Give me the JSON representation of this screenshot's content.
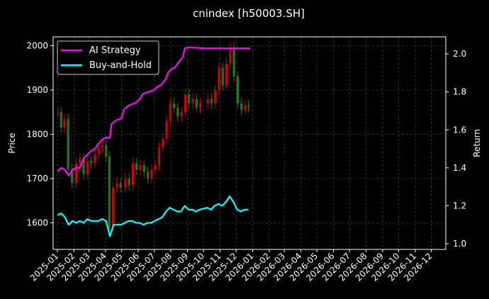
{
  "chart_data": {
    "type": "line",
    "title": "cnindex [h50003.SH]",
    "ylabel_left": "Price",
    "ylabel_right": "Return",
    "x_tick_labels": [
      "2025-01",
      "2025-02",
      "2025-03",
      "2025-04",
      "2025-05",
      "2025-06",
      "2025-07",
      "2025-08",
      "2025-09",
      "2025-10",
      "2025-11",
      "2025-12",
      "2026-01",
      "2026-02",
      "2026-03",
      "2026-04",
      "2026-05",
      "2026-06",
      "2026-07",
      "2026-08",
      "2026-09",
      "2026-10",
      "2026-11",
      "2026-12"
    ],
    "xlim": [
      "2024-12-24",
      "2026-12-28"
    ],
    "ylim_left": [
      1540,
      2020
    ],
    "yticks_left": [
      1600,
      1700,
      1800,
      1900,
      2000
    ],
    "ylim_right": [
      0.97,
      2.09
    ],
    "yticks_right": [
      "1.0",
      "1.2",
      "1.4",
      "1.6",
      "1.8",
      "2.0"
    ],
    "grid": true,
    "legend_position": "top-left",
    "colors": {
      "up": "#cc0000",
      "down": "#1f7a1f",
      "ai": "#ff00ff",
      "bh": "#00ffff",
      "background": "#000000"
    },
    "price_series": [
      {
        "date": "2025-01-02",
        "close": 1850
      },
      {
        "date": "2025-01-08",
        "close": 1815
      },
      {
        "date": "2025-01-14",
        "close": 1835
      },
      {
        "date": "2025-01-21",
        "close": 1720
      },
      {
        "date": "2025-01-28",
        "close": 1690
      },
      {
        "date": "2025-02-05",
        "close": 1735
      },
      {
        "date": "2025-02-12",
        "close": 1745
      },
      {
        "date": "2025-02-19",
        "close": 1710
      },
      {
        "date": "2025-02-26",
        "close": 1740
      },
      {
        "date": "2025-03-05",
        "close": 1735
      },
      {
        "date": "2025-03-12",
        "close": 1755
      },
      {
        "date": "2025-03-19",
        "close": 1770
      },
      {
        "date": "2025-03-26",
        "close": 1775
      },
      {
        "date": "2025-04-02",
        "close": 1750
      },
      {
        "date": "2025-04-08",
        "close": 1590
      },
      {
        "date": "2025-04-15",
        "close": 1680
      },
      {
        "date": "2025-04-22",
        "close": 1690
      },
      {
        "date": "2025-04-29",
        "close": 1680
      },
      {
        "date": "2025-05-08",
        "close": 1700
      },
      {
        "date": "2025-05-15",
        "close": 1685
      },
      {
        "date": "2025-05-22",
        "close": 1735
      },
      {
        "date": "2025-05-29",
        "close": 1720
      },
      {
        "date": "2025-06-05",
        "close": 1730
      },
      {
        "date": "2025-06-12",
        "close": 1715
      },
      {
        "date": "2025-06-19",
        "close": 1700
      },
      {
        "date": "2025-06-26",
        "close": 1720
      },
      {
        "date": "2025-07-03",
        "close": 1730
      },
      {
        "date": "2025-07-10",
        "close": 1770
      },
      {
        "date": "2025-07-17",
        "close": 1790
      },
      {
        "date": "2025-07-24",
        "close": 1830
      },
      {
        "date": "2025-07-31",
        "close": 1870
      },
      {
        "date": "2025-08-07",
        "close": 1860
      },
      {
        "date": "2025-08-14",
        "close": 1840
      },
      {
        "date": "2025-08-21",
        "close": 1850
      },
      {
        "date": "2025-08-28",
        "close": 1890
      },
      {
        "date": "2025-09-04",
        "close": 1870
      },
      {
        "date": "2025-09-11",
        "close": 1880
      },
      {
        "date": "2025-09-18",
        "close": 1860
      },
      {
        "date": "2025-09-25",
        "close": 1870
      },
      {
        "date": "2025-10-09",
        "close": 1880
      },
      {
        "date": "2025-10-16",
        "close": 1870
      },
      {
        "date": "2025-10-23",
        "close": 1900
      },
      {
        "date": "2025-10-30",
        "close": 1950
      },
      {
        "date": "2025-11-06",
        "close": 1910
      },
      {
        "date": "2025-11-13",
        "close": 1960
      },
      {
        "date": "2025-11-20",
        "close": 1995
      },
      {
        "date": "2025-11-27",
        "close": 1930
      },
      {
        "date": "2025-12-04",
        "close": 1870
      },
      {
        "date": "2025-12-11",
        "close": 1855
      },
      {
        "date": "2025-12-18",
        "close": 1865
      },
      {
        "date": "2025-12-24",
        "close": 1862
      }
    ],
    "series": [
      {
        "name": "AI Strategy",
        "axis": "right",
        "points": [
          {
            "date": "2025-01-01",
            "value": 1.38
          },
          {
            "date": "2025-01-08",
            "value": 1.4
          },
          {
            "date": "2025-01-15",
            "value": 1.39
          },
          {
            "date": "2025-01-22",
            "value": 1.36
          },
          {
            "date": "2025-01-29",
            "value": 1.39
          },
          {
            "date": "2025-02-05",
            "value": 1.4
          },
          {
            "date": "2025-02-12",
            "value": 1.4
          },
          {
            "date": "2025-02-19",
            "value": 1.45
          },
          {
            "date": "2025-02-26",
            "value": 1.47
          },
          {
            "date": "2025-03-05",
            "value": 1.49
          },
          {
            "date": "2025-03-12",
            "value": 1.5
          },
          {
            "date": "2025-03-19",
            "value": 1.53
          },
          {
            "date": "2025-03-26",
            "value": 1.55
          },
          {
            "date": "2025-04-02",
            "value": 1.56
          },
          {
            "date": "2025-04-09",
            "value": 1.56
          },
          {
            "date": "2025-04-12",
            "value": 1.63
          },
          {
            "date": "2025-04-20",
            "value": 1.65
          },
          {
            "date": "2025-04-30",
            "value": 1.66
          },
          {
            "date": "2025-05-06",
            "value": 1.71
          },
          {
            "date": "2025-05-15",
            "value": 1.73
          },
          {
            "date": "2025-05-25",
            "value": 1.74
          },
          {
            "date": "2025-06-03",
            "value": 1.76
          },
          {
            "date": "2025-06-10",
            "value": 1.79
          },
          {
            "date": "2025-06-20",
            "value": 1.8
          },
          {
            "date": "2025-06-30",
            "value": 1.81
          },
          {
            "date": "2025-07-08",
            "value": 1.83
          },
          {
            "date": "2025-07-15",
            "value": 1.84
          },
          {
            "date": "2025-07-23",
            "value": 1.87
          },
          {
            "date": "2025-07-26",
            "value": 1.9
          },
          {
            "date": "2025-08-02",
            "value": 1.92
          },
          {
            "date": "2025-08-09",
            "value": 1.93
          },
          {
            "date": "2025-08-16",
            "value": 1.96
          },
          {
            "date": "2025-08-23",
            "value": 1.98
          },
          {
            "date": "2025-08-27",
            "value": 2.03
          },
          {
            "date": "2025-09-05",
            "value": 2.035
          },
          {
            "date": "2025-10-01",
            "value": 2.03
          },
          {
            "date": "2025-11-01",
            "value": 2.03
          },
          {
            "date": "2025-12-01",
            "value": 2.03
          },
          {
            "date": "2025-12-27",
            "value": 2.03
          }
        ]
      },
      {
        "name": "Buy-and-Hold",
        "axis": "right",
        "points": [
          {
            "date": "2025-01-01",
            "value": 1.15
          },
          {
            "date": "2025-01-08",
            "value": 1.16
          },
          {
            "date": "2025-01-15",
            "value": 1.14
          },
          {
            "date": "2025-01-22",
            "value": 1.1
          },
          {
            "date": "2025-01-29",
            "value": 1.12
          },
          {
            "date": "2025-02-05",
            "value": 1.11
          },
          {
            "date": "2025-02-12",
            "value": 1.12
          },
          {
            "date": "2025-02-19",
            "value": 1.11
          },
          {
            "date": "2025-02-26",
            "value": 1.13
          },
          {
            "date": "2025-03-05",
            "value": 1.12
          },
          {
            "date": "2025-03-12",
            "value": 1.12
          },
          {
            "date": "2025-03-19",
            "value": 1.12
          },
          {
            "date": "2025-03-26",
            "value": 1.13
          },
          {
            "date": "2025-04-02",
            "value": 1.12
          },
          {
            "date": "2025-04-09",
            "value": 1.04
          },
          {
            "date": "2025-04-16",
            "value": 1.1
          },
          {
            "date": "2025-04-23",
            "value": 1.1
          },
          {
            "date": "2025-04-30",
            "value": 1.1
          },
          {
            "date": "2025-05-07",
            "value": 1.11
          },
          {
            "date": "2025-05-14",
            "value": 1.12
          },
          {
            "date": "2025-05-21",
            "value": 1.12
          },
          {
            "date": "2025-05-28",
            "value": 1.11
          },
          {
            "date": "2025-06-04",
            "value": 1.11
          },
          {
            "date": "2025-06-11",
            "value": 1.1
          },
          {
            "date": "2025-06-18",
            "value": 1.11
          },
          {
            "date": "2025-06-25",
            "value": 1.11
          },
          {
            "date": "2025-07-02",
            "value": 1.12
          },
          {
            "date": "2025-07-09",
            "value": 1.13
          },
          {
            "date": "2025-07-16",
            "value": 1.14
          },
          {
            "date": "2025-07-23",
            "value": 1.17
          },
          {
            "date": "2025-07-30",
            "value": 1.19
          },
          {
            "date": "2025-08-06",
            "value": 1.18
          },
          {
            "date": "2025-08-13",
            "value": 1.17
          },
          {
            "date": "2025-08-20",
            "value": 1.17
          },
          {
            "date": "2025-08-27",
            "value": 1.2
          },
          {
            "date": "2025-09-03",
            "value": 1.18
          },
          {
            "date": "2025-09-10",
            "value": 1.18
          },
          {
            "date": "2025-09-17",
            "value": 1.17
          },
          {
            "date": "2025-09-24",
            "value": 1.18
          },
          {
            "date": "2025-10-08",
            "value": 1.19
          },
          {
            "date": "2025-10-15",
            "value": 1.18
          },
          {
            "date": "2025-10-22",
            "value": 1.2
          },
          {
            "date": "2025-10-29",
            "value": 1.21
          },
          {
            "date": "2025-11-05",
            "value": 1.2
          },
          {
            "date": "2025-11-12",
            "value": 1.22
          },
          {
            "date": "2025-11-19",
            "value": 1.25
          },
          {
            "date": "2025-11-26",
            "value": 1.22
          },
          {
            "date": "2025-12-03",
            "value": 1.18
          },
          {
            "date": "2025-12-10",
            "value": 1.17
          },
          {
            "date": "2025-12-17",
            "value": 1.18
          },
          {
            "date": "2025-12-24",
            "value": 1.18
          }
        ]
      }
    ]
  }
}
